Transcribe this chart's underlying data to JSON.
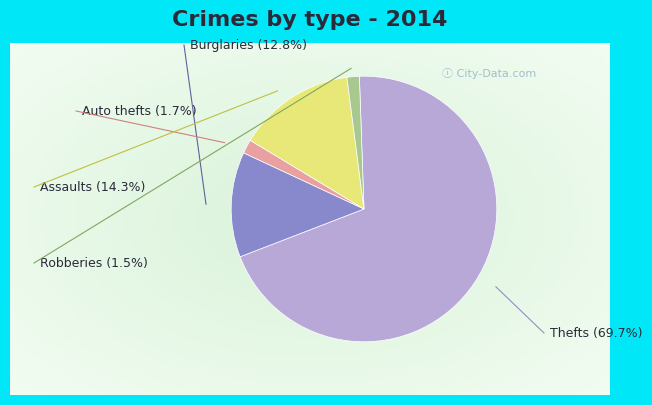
{
  "title": "Crimes by type - 2014",
  "labels": [
    "Thefts",
    "Burglaries",
    "Auto thefts",
    "Assaults",
    "Robberies"
  ],
  "values": [
    69.7,
    12.8,
    1.7,
    14.3,
    1.5
  ],
  "colors": [
    "#b8a8d8",
    "#8888cc",
    "#e8a0a0",
    "#e8e878",
    "#a8c890"
  ],
  "label_texts": [
    "Thefts (69.7%)",
    "Burglaries (12.8%)",
    "Auto thefts (1.7%)",
    "Assaults (14.3%)",
    "Robberies (1.5%)"
  ],
  "bg_cyan": "#00e8f8",
  "title_bar_height": 0.12,
  "title_fontsize": 16,
  "label_fontsize": 9,
  "watermark_text": "ⓘ City-Data.com",
  "text_color": "#2a2a3a",
  "line_colors": [
    "#9090c0",
    "#6060a0",
    "#d08080",
    "#c0c040",
    "#80a860"
  ]
}
